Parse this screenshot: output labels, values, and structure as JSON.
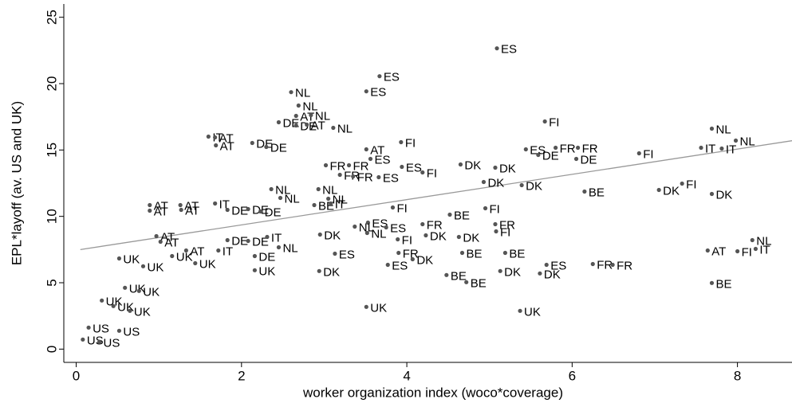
{
  "chart_data": {
    "type": "scatter",
    "xlabel": "worker organization index (woco*coverage)",
    "ylabel": "EPL*layoff (av. US and UK)",
    "xlim": [
      -0.15,
      8.66
    ],
    "ylim": [
      -1,
      26
    ],
    "xticks": [
      0,
      2,
      4,
      6,
      8
    ],
    "yticks": [
      0,
      5,
      10,
      15,
      20,
      25
    ],
    "point_color": "#555555",
    "line_color": "#999999",
    "fit_line": {
      "x": [
        0.05,
        8.66
      ],
      "values": [
        7.5,
        15.7
      ]
    },
    "points": [
      {
        "x": 5.09,
        "y": 22.66,
        "label": "ES"
      },
      {
        "x": 3.67,
        "y": 20.56,
        "label": "ES"
      },
      {
        "x": 2.6,
        "y": 19.36,
        "label": "NL"
      },
      {
        "x": 3.51,
        "y": 19.42,
        "label": "ES"
      },
      {
        "x": 2.69,
        "y": 18.35,
        "label": "NL"
      },
      {
        "x": 2.66,
        "y": 17.57,
        "label": "AT"
      },
      {
        "x": 2.84,
        "y": 17.63,
        "label": "NL"
      },
      {
        "x": 2.45,
        "y": 17.09,
        "label": "DE"
      },
      {
        "x": 2.66,
        "y": 16.85,
        "label": "DE"
      },
      {
        "x": 2.79,
        "y": 16.91,
        "label": "AT"
      },
      {
        "x": 3.11,
        "y": 16.67,
        "label": "NL"
      },
      {
        "x": 5.67,
        "y": 17.15,
        "label": "FI"
      },
      {
        "x": 7.69,
        "y": 16.61,
        "label": "NL"
      },
      {
        "x": 1.6,
        "y": 16.01,
        "label": "IT"
      },
      {
        "x": 1.68,
        "y": 15.95,
        "label": "AT"
      },
      {
        "x": 1.69,
        "y": 15.35,
        "label": "AT"
      },
      {
        "x": 2.13,
        "y": 15.53,
        "label": "DE"
      },
      {
        "x": 2.3,
        "y": 15.23,
        "label": "DE"
      },
      {
        "x": 3.93,
        "y": 15.59,
        "label": "FI"
      },
      {
        "x": 3.51,
        "y": 15.05,
        "label": "AT"
      },
      {
        "x": 7.98,
        "y": 15.71,
        "label": "NL"
      },
      {
        "x": 7.56,
        "y": 15.17,
        "label": "IT"
      },
      {
        "x": 7.81,
        "y": 15.11,
        "label": "IT"
      },
      {
        "x": 5.44,
        "y": 15.05,
        "label": "ES"
      },
      {
        "x": 5.8,
        "y": 15.17,
        "label": "FR"
      },
      {
        "x": 6.07,
        "y": 15.17,
        "label": "FR"
      },
      {
        "x": 5.59,
        "y": 14.63,
        "label": "DE"
      },
      {
        "x": 6.05,
        "y": 14.33,
        "label": "DE"
      },
      {
        "x": 6.81,
        "y": 14.75,
        "label": "FI"
      },
      {
        "x": 3.56,
        "y": 14.33,
        "label": "ES"
      },
      {
        "x": 3.02,
        "y": 13.85,
        "label": "FR"
      },
      {
        "x": 3.3,
        "y": 13.85,
        "label": "FR"
      },
      {
        "x": 3.94,
        "y": 13.73,
        "label": "ES"
      },
      {
        "x": 4.19,
        "y": 13.31,
        "label": "FI"
      },
      {
        "x": 3.19,
        "y": 13.13,
        "label": "FR"
      },
      {
        "x": 3.35,
        "y": 13.01,
        "label": "FR"
      },
      {
        "x": 3.66,
        "y": 12.95,
        "label": "ES"
      },
      {
        "x": 4.65,
        "y": 13.91,
        "label": "DK"
      },
      {
        "x": 5.07,
        "y": 13.67,
        "label": "DK"
      },
      {
        "x": 4.93,
        "y": 12.59,
        "label": "DK"
      },
      {
        "x": 5.39,
        "y": 12.35,
        "label": "DK"
      },
      {
        "x": 7.33,
        "y": 12.47,
        "label": "FI"
      },
      {
        "x": 7.05,
        "y": 11.99,
        "label": "DK"
      },
      {
        "x": 7.69,
        "y": 11.69,
        "label": "DK"
      },
      {
        "x": 6.15,
        "y": 11.87,
        "label": "BE"
      },
      {
        "x": 2.36,
        "y": 12.05,
        "label": "NL"
      },
      {
        "x": 2.47,
        "y": 11.39,
        "label": "NL"
      },
      {
        "x": 2.93,
        "y": 12.05,
        "label": "NL"
      },
      {
        "x": 3.05,
        "y": 11.33,
        "label": "NL"
      },
      {
        "x": 2.88,
        "y": 10.85,
        "label": "BE"
      },
      {
        "x": 3.08,
        "y": 10.97,
        "label": "IT"
      },
      {
        "x": 0.89,
        "y": 10.85,
        "label": "AT"
      },
      {
        "x": 0.89,
        "y": 10.43,
        "label": "AT"
      },
      {
        "x": 1.26,
        "y": 10.85,
        "label": "AT"
      },
      {
        "x": 1.27,
        "y": 10.49,
        "label": "AT"
      },
      {
        "x": 1.68,
        "y": 10.97,
        "label": "IT"
      },
      {
        "x": 1.83,
        "y": 10.49,
        "label": "DE"
      },
      {
        "x": 2.08,
        "y": 10.55,
        "label": "DE"
      },
      {
        "x": 2.23,
        "y": 10.37,
        "label": "DE"
      },
      {
        "x": 3.83,
        "y": 10.67,
        "label": "FI"
      },
      {
        "x": 4.95,
        "y": 10.61,
        "label": "FI"
      },
      {
        "x": 4.52,
        "y": 10.13,
        "label": "BE"
      },
      {
        "x": 3.53,
        "y": 9.53,
        "label": "ES"
      },
      {
        "x": 3.37,
        "y": 9.23,
        "label": "NL"
      },
      {
        "x": 3.75,
        "y": 9.17,
        "label": "ES"
      },
      {
        "x": 4.19,
        "y": 9.41,
        "label": "FR"
      },
      {
        "x": 5.07,
        "y": 9.41,
        "label": "FR"
      },
      {
        "x": 5.08,
        "y": 8.87,
        "label": "FI"
      },
      {
        "x": 2.95,
        "y": 8.63,
        "label": "DK"
      },
      {
        "x": 3.52,
        "y": 8.75,
        "label": "NL"
      },
      {
        "x": 3.89,
        "y": 8.27,
        "label": "FI"
      },
      {
        "x": 4.23,
        "y": 8.57,
        "label": "DK"
      },
      {
        "x": 4.63,
        "y": 8.45,
        "label": "DK"
      },
      {
        "x": 0.97,
        "y": 8.51,
        "label": "AT"
      },
      {
        "x": 1.02,
        "y": 8.09,
        "label": "AT"
      },
      {
        "x": 1.83,
        "y": 8.21,
        "label": "DE"
      },
      {
        "x": 2.08,
        "y": 8.15,
        "label": "DE"
      },
      {
        "x": 2.31,
        "y": 8.45,
        "label": "IT"
      },
      {
        "x": 2.45,
        "y": 7.67,
        "label": "NL"
      },
      {
        "x": 0.52,
        "y": 6.83,
        "label": "UK"
      },
      {
        "x": 0.81,
        "y": 6.24,
        "label": "UK"
      },
      {
        "x": 1.16,
        "y": 7.01,
        "label": "UK"
      },
      {
        "x": 1.33,
        "y": 7.43,
        "label": "AT"
      },
      {
        "x": 1.72,
        "y": 7.43,
        "label": "IT"
      },
      {
        "x": 1.44,
        "y": 6.47,
        "label": "UK"
      },
      {
        "x": 2.16,
        "y": 7.01,
        "label": "DE"
      },
      {
        "x": 2.16,
        "y": 5.94,
        "label": "UK"
      },
      {
        "x": 3.13,
        "y": 7.19,
        "label": "ES"
      },
      {
        "x": 2.94,
        "y": 5.88,
        "label": "DK"
      },
      {
        "x": 3.77,
        "y": 6.35,
        "label": "ES"
      },
      {
        "x": 3.9,
        "y": 7.25,
        "label": "FR"
      },
      {
        "x": 4.07,
        "y": 6.77,
        "label": "DK"
      },
      {
        "x": 4.67,
        "y": 7.25,
        "label": "BE"
      },
      {
        "x": 5.19,
        "y": 7.25,
        "label": "BE"
      },
      {
        "x": 5.69,
        "y": 6.35,
        "label": "ES"
      },
      {
        "x": 5.13,
        "y": 5.88,
        "label": "DK"
      },
      {
        "x": 5.61,
        "y": 5.7,
        "label": "DK"
      },
      {
        "x": 6.25,
        "y": 6.41,
        "label": "FR"
      },
      {
        "x": 6.49,
        "y": 6.35,
        "label": "FR"
      },
      {
        "x": 4.48,
        "y": 5.58,
        "label": "BE"
      },
      {
        "x": 4.72,
        "y": 5.04,
        "label": "BE"
      },
      {
        "x": 7.69,
        "y": 4.98,
        "label": "BE"
      },
      {
        "x": 7.64,
        "y": 7.43,
        "label": "AT"
      },
      {
        "x": 8.0,
        "y": 7.37,
        "label": "FI"
      },
      {
        "x": 8.22,
        "y": 7.55,
        "label": "IT"
      },
      {
        "x": 8.18,
        "y": 8.21,
        "label": "NL"
      },
      {
        "x": 0.59,
        "y": 4.62,
        "label": "UK"
      },
      {
        "x": 0.76,
        "y": 4.38,
        "label": "UK"
      },
      {
        "x": 0.31,
        "y": 3.66,
        "label": "UK"
      },
      {
        "x": 0.45,
        "y": 3.24,
        "label": "UK"
      },
      {
        "x": 0.65,
        "y": 2.88,
        "label": "UK"
      },
      {
        "x": 3.51,
        "y": 3.18,
        "label": "UK"
      },
      {
        "x": 5.37,
        "y": 2.88,
        "label": "UK"
      },
      {
        "x": 0.15,
        "y": 1.62,
        "label": "US"
      },
      {
        "x": 0.52,
        "y": 1.38,
        "label": "US"
      },
      {
        "x": 0.08,
        "y": 0.72,
        "label": "US"
      },
      {
        "x": 0.28,
        "y": 0.54,
        "label": "US"
      }
    ]
  }
}
